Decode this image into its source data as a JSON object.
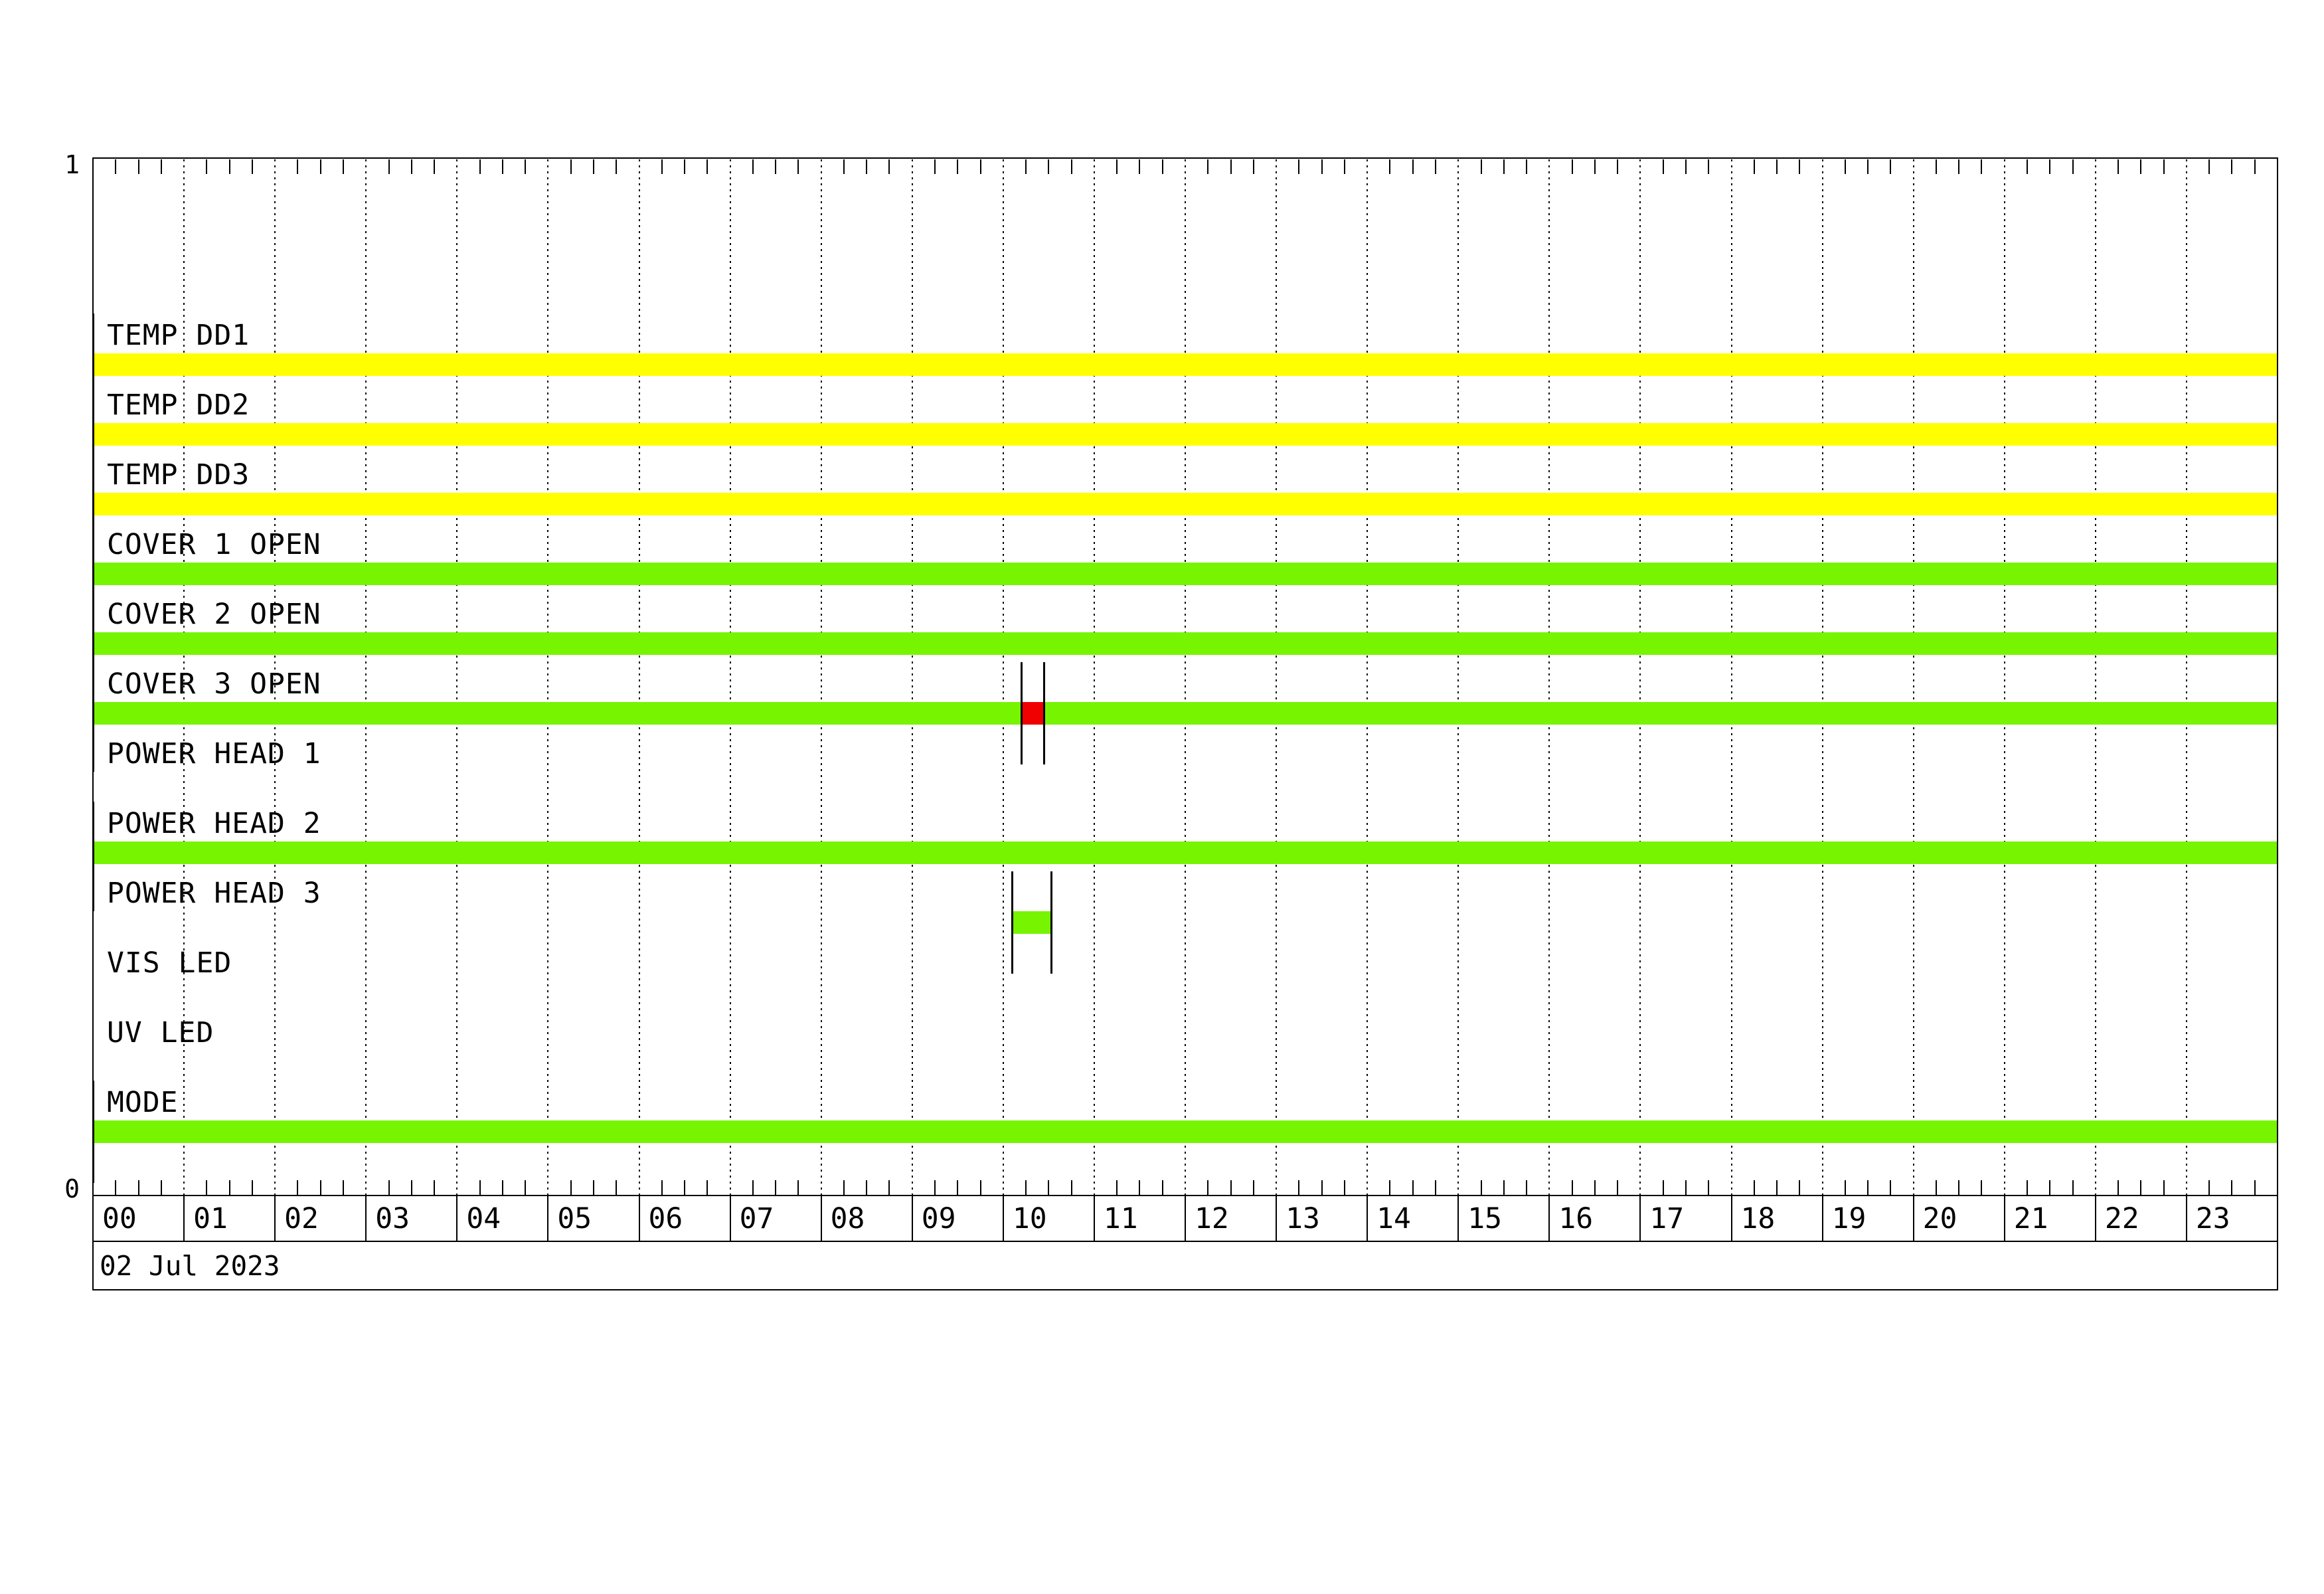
{
  "page": {
    "background": "#ffffff",
    "line_color": "#000000"
  },
  "axis": {
    "y_top_label": "1",
    "y_bottom_label": "0",
    "date_label": "02 Jul 2023"
  },
  "colors": {
    "yellow": "#ffff00",
    "green": "#76f400",
    "red": "#f00000",
    "black": "#000000"
  },
  "chart_data": {
    "type": "bar",
    "subtype": "status-timeline-gantt",
    "title": "",
    "date": "02 Jul 2023",
    "x_unit": "hour of day",
    "x_range_hours": [
      0,
      24
    ],
    "x_minor_tick_minutes": 15,
    "x_tick_labels": [
      "00",
      "01",
      "02",
      "03",
      "04",
      "05",
      "06",
      "07",
      "08",
      "09",
      "10",
      "11",
      "12",
      "13",
      "14",
      "15",
      "16",
      "17",
      "18",
      "19",
      "20",
      "21",
      "22",
      "23"
    ],
    "y_range": [
      0,
      1
    ],
    "grid": "dotted vertical line at each hour",
    "legend": "none",
    "rows": [
      {
        "name": "TEMP DD1",
        "intervals": [
          {
            "start": "00:00",
            "end": "24:00",
            "state": "active",
            "color": "#ffff00"
          }
        ],
        "baseline_tick": false
      },
      {
        "name": "TEMP DD2",
        "intervals": [
          {
            "start": "00:00",
            "end": "24:00",
            "state": "active",
            "color": "#ffff00"
          }
        ],
        "baseline_tick": false
      },
      {
        "name": "TEMP DD3",
        "intervals": [
          {
            "start": "00:00",
            "end": "24:00",
            "state": "active",
            "color": "#ffff00"
          }
        ],
        "baseline_tick": false
      },
      {
        "name": "COVER 1 OPEN",
        "intervals": [
          {
            "start": "00:00",
            "end": "24:00",
            "state": "open",
            "color": "#76f400"
          }
        ],
        "baseline_tick": false
      },
      {
        "name": "COVER 2 OPEN",
        "intervals": [
          {
            "start": "00:00",
            "end": "24:00",
            "state": "open",
            "color": "#76f400"
          }
        ],
        "baseline_tick": false
      },
      {
        "name": "COVER 3 OPEN",
        "intervals": [
          {
            "start": "00:00",
            "end": "10:12",
            "state": "open",
            "color": "#76f400"
          },
          {
            "start": "10:12",
            "end": "10:27",
            "state": "closed",
            "color": "#f00000"
          },
          {
            "start": "10:27",
            "end": "24:00",
            "state": "open",
            "color": "#76f400"
          }
        ],
        "baseline_tick": false
      },
      {
        "name": "POWER HEAD 1",
        "intervals": [],
        "baseline_tick": true
      },
      {
        "name": "POWER HEAD 2",
        "intervals": [
          {
            "start": "00:00",
            "end": "24:00",
            "state": "on",
            "color": "#76f400"
          }
        ],
        "baseline_tick": false
      },
      {
        "name": "POWER HEAD 3",
        "intervals": [
          {
            "start": "10:06",
            "end": "10:32",
            "state": "on",
            "color": "#76f400"
          }
        ],
        "baseline_tick": true
      },
      {
        "name": "VIS LED",
        "intervals": [],
        "baseline_tick": false
      },
      {
        "name": "UV LED",
        "intervals": [],
        "baseline_tick": false
      },
      {
        "name": "MODE",
        "intervals": [
          {
            "start": "00:00",
            "end": "24:00",
            "state": "on",
            "color": "#76f400"
          }
        ],
        "baseline_tick": false
      }
    ]
  }
}
